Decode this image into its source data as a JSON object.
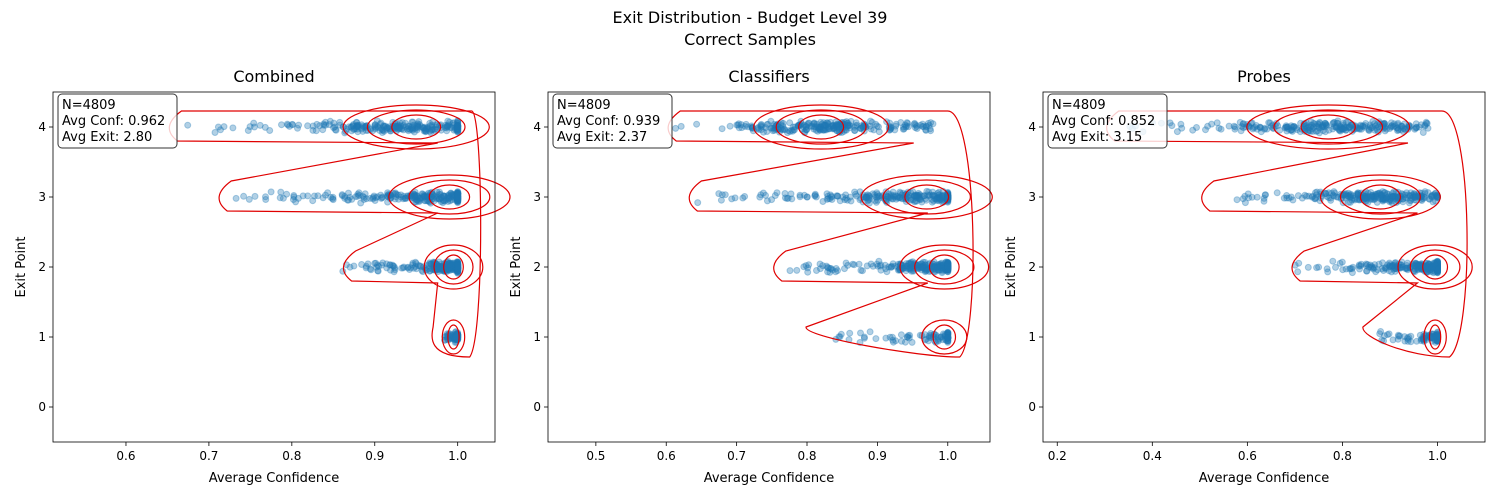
{
  "figure": {
    "title_line1": "Exit Distribution - Budget Level 39",
    "title_line2": "Correct Samples"
  },
  "colors": {
    "points": "#1f77b4",
    "contours": "#e00000"
  },
  "chart_data": [
    {
      "type": "scatter",
      "title": "Combined",
      "xlabel": "Average Confidence",
      "ylabel": "Exit Point",
      "xlim": [
        0.512,
        1.045
      ],
      "ylim": [
        -0.5,
        4.5
      ],
      "xticks": [
        "0.6",
        "0.7",
        "0.8",
        "0.9",
        "1.0"
      ],
      "yticks": [
        "0",
        "1",
        "2",
        "3",
        "4"
      ],
      "stats": {
        "n": "N=4809",
        "avg_conf": "Avg Conf: 0.962",
        "avg_exit": "Avg Exit: 2.80"
      },
      "density_overlay": "kde contours",
      "groups": [
        {
          "exit": 4,
          "x_min": 0.65,
          "x_max": 1.0,
          "peak": 0.95
        },
        {
          "exit": 3,
          "x_min": 0.71,
          "x_max": 1.0,
          "peak": 0.99
        },
        {
          "exit": 2,
          "x_min": 0.86,
          "x_max": 1.0,
          "peak": 1.0
        },
        {
          "exit": 1,
          "x_min": 0.98,
          "x_max": 1.0,
          "peak": 1.0
        }
      ]
    },
    {
      "type": "scatter",
      "title": "Classifiers",
      "xlabel": "Average Confidence",
      "ylabel": "Exit Point",
      "xlim": [
        0.432,
        1.06
      ],
      "ylim": [
        -0.5,
        4.5
      ],
      "xticks": [
        "0.5",
        "0.6",
        "0.7",
        "0.8",
        "0.9",
        "1.0"
      ],
      "yticks": [
        "0",
        "1",
        "2",
        "3",
        "4"
      ],
      "stats": {
        "n": "N=4809",
        "avg_conf": "Avg Conf: 0.939",
        "avg_exit": "Avg Exit: 2.37"
      },
      "density_overlay": "kde contours",
      "groups": [
        {
          "exit": 4,
          "x_min": 0.6,
          "x_max": 0.98,
          "peak": 0.82
        },
        {
          "exit": 3,
          "x_min": 0.63,
          "x_max": 1.0,
          "peak": 0.97
        },
        {
          "exit": 2,
          "x_min": 0.75,
          "x_max": 1.0,
          "peak": 1.0
        },
        {
          "exit": 1,
          "x_min": 0.81,
          "x_max": 1.0,
          "peak": 1.0
        }
      ]
    },
    {
      "type": "scatter",
      "title": "Probes",
      "xlabel": "Average Confidence",
      "ylabel": "Exit Point",
      "xlim": [
        0.17,
        1.1
      ],
      "ylim": [
        -0.5,
        4.5
      ],
      "xticks": [
        "0.2",
        "0.4",
        "0.6",
        "0.8",
        "1.0"
      ],
      "yticks": [
        "0",
        "1",
        "2",
        "3",
        "4"
      ],
      "stats": {
        "n": "N=4809",
        "avg_conf": "Avg Conf: 0.852",
        "avg_exit": "Avg Exit: 3.15"
      },
      "density_overlay": "kde contours",
      "groups": [
        {
          "exit": 4,
          "x_min": 0.3,
          "x_max": 0.98,
          "peak": 0.77
        },
        {
          "exit": 3,
          "x_min": 0.5,
          "x_max": 1.0,
          "peak": 0.88
        },
        {
          "exit": 2,
          "x_min": 0.69,
          "x_max": 1.0,
          "peak": 1.0
        },
        {
          "exit": 1,
          "x_min": 0.86,
          "x_max": 1.0,
          "peak": 1.0
        }
      ]
    }
  ]
}
